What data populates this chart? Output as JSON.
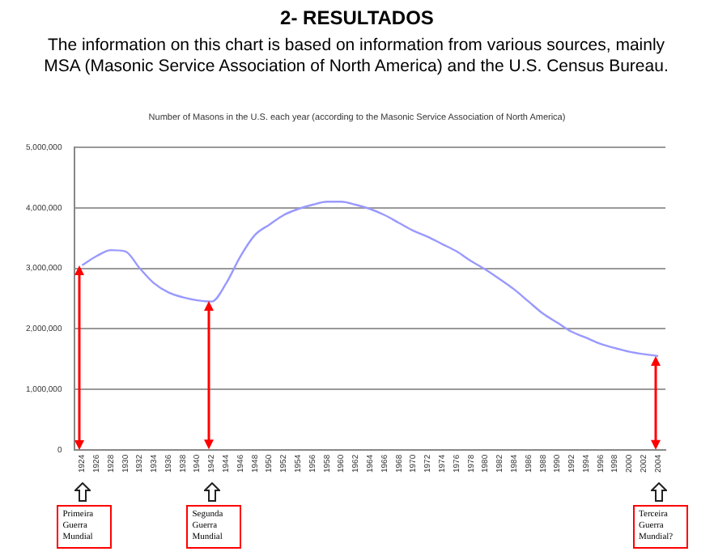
{
  "chart_data": {
    "type": "line",
    "title": "2- RESULTADOS",
    "subtitle": "The information on this chart is based on information from various sources, mainly MSA (Masonic Service Association of North America) and the U.S. Census Bureau.",
    "annotations": [
      "Number of Masons in the U.S. each year (according to the Masonic Service Association of North America)",
      "Primeira Guerra Mundial",
      "Segunda Guerra Mundial",
      "Terceira Guerra Mundial?"
    ],
    "ref_lines": [
      {
        "axis": "x",
        "value": "1924",
        "color": "#ff0000"
      },
      {
        "axis": "x",
        "value": "1942",
        "color": "#ff0000"
      },
      {
        "axis": "x",
        "value": "2004",
        "color": "#ff0000"
      }
    ],
    "categories": [
      "1924",
      "1926",
      "1928",
      "1930",
      "1932",
      "1934",
      "1936",
      "1938",
      "1940",
      "1942",
      "1944",
      "1946",
      "1948",
      "1950",
      "1952",
      "1954",
      "1956",
      "1958",
      "1960",
      "1962",
      "1964",
      "1966",
      "1968",
      "1970",
      "1972",
      "1974",
      "1976",
      "1978",
      "1980",
      "1982",
      "1984",
      "1986",
      "1988",
      "1990",
      "1992",
      "1994",
      "1996",
      "1998",
      "2000",
      "2002",
      "2004"
    ],
    "values": [
      3050000,
      3200000,
      3300000,
      3280000,
      3000000,
      2750000,
      2600000,
      2520000,
      2470000,
      2450000,
      2750000,
      3200000,
      3550000,
      3720000,
      3880000,
      3980000,
      4050000,
      4100000,
      4100000,
      4050000,
      3980000,
      3880000,
      3750000,
      3620000,
      3520000,
      3400000,
      3280000,
      3120000,
      2980000,
      2820000,
      2650000,
      2450000,
      2250000,
      2100000,
      1950000,
      1850000,
      1750000,
      1680000,
      1620000,
      1580000,
      1550000
    ],
    "color": "#9999ff",
    "marker": "none",
    "grid": "y",
    "legend": false,
    "ylim": [
      0,
      5000000
    ],
    "yticks": [
      {
        "value": 0,
        "label": "0"
      },
      {
        "value": 1000000,
        "label": "1,000,000"
      },
      {
        "value": 2000000,
        "label": "2,000,000"
      },
      {
        "value": 3000000,
        "label": "3,000,000"
      },
      {
        "value": 4000000,
        "label": "4,000,000"
      },
      {
        "value": 5000000,
        "label": "5,000,000"
      }
    ]
  }
}
